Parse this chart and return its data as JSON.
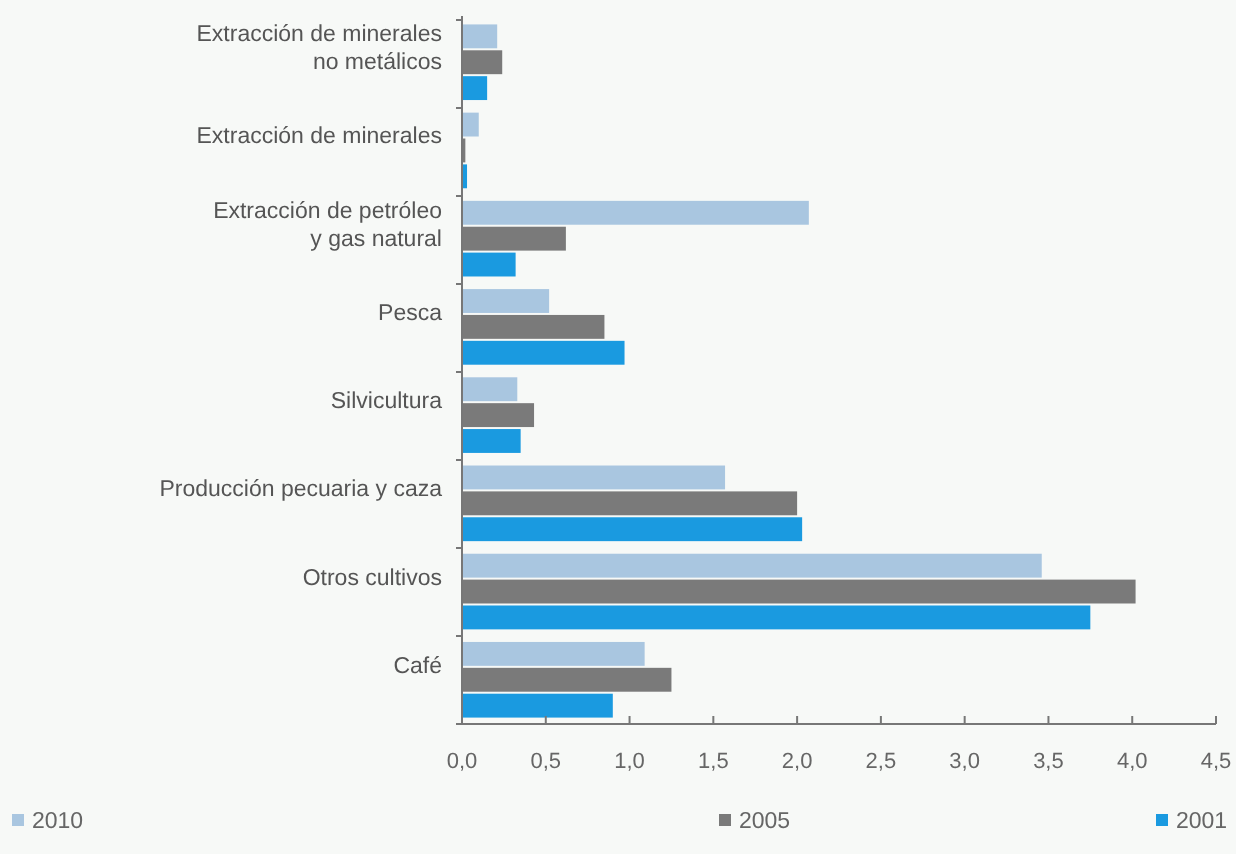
{
  "chart_data": {
    "type": "bar",
    "orientation": "horizontal",
    "categories": [
      "Extracción de minerales\nno metálicos",
      "Extracción de minerales",
      "Extracción de petróleo\ny gas natural",
      "Pesca",
      "Silvicultura",
      "Producción pecuaria y caza",
      "Otros cultivos",
      "Café"
    ],
    "series": [
      {
        "name": "2010",
        "color": "#a9c6e0",
        "values": [
          0.21,
          0.1,
          2.07,
          0.52,
          0.33,
          1.57,
          3.46,
          1.09
        ]
      },
      {
        "name": "2005",
        "color": "#7a7a7a",
        "values": [
          0.24,
          0.02,
          0.62,
          0.85,
          0.43,
          2.0,
          4.02,
          1.25
        ]
      },
      {
        "name": "2001",
        "color": "#1a9ae0",
        "values": [
          0.15,
          0.03,
          0.32,
          0.97,
          0.35,
          2.03,
          3.75,
          0.9
        ]
      }
    ],
    "xlim": [
      0,
      4.5
    ],
    "xticks": [
      {
        "value": 0,
        "label": "0,0"
      },
      {
        "value": 0.5,
        "label": "0,5"
      },
      {
        "value": 1,
        "label": "1,0"
      },
      {
        "value": 1.5,
        "label": "1,5"
      },
      {
        "value": 2,
        "label": "2,0"
      },
      {
        "value": 2.5,
        "label": "2,5"
      },
      {
        "value": 3,
        "label": "3,0"
      },
      {
        "value": 3.5,
        "label": "3,5"
      },
      {
        "value": 4,
        "label": "4,0"
      },
      {
        "value": 4.5,
        "label": "4,5"
      }
    ],
    "legend": "bottom"
  }
}
